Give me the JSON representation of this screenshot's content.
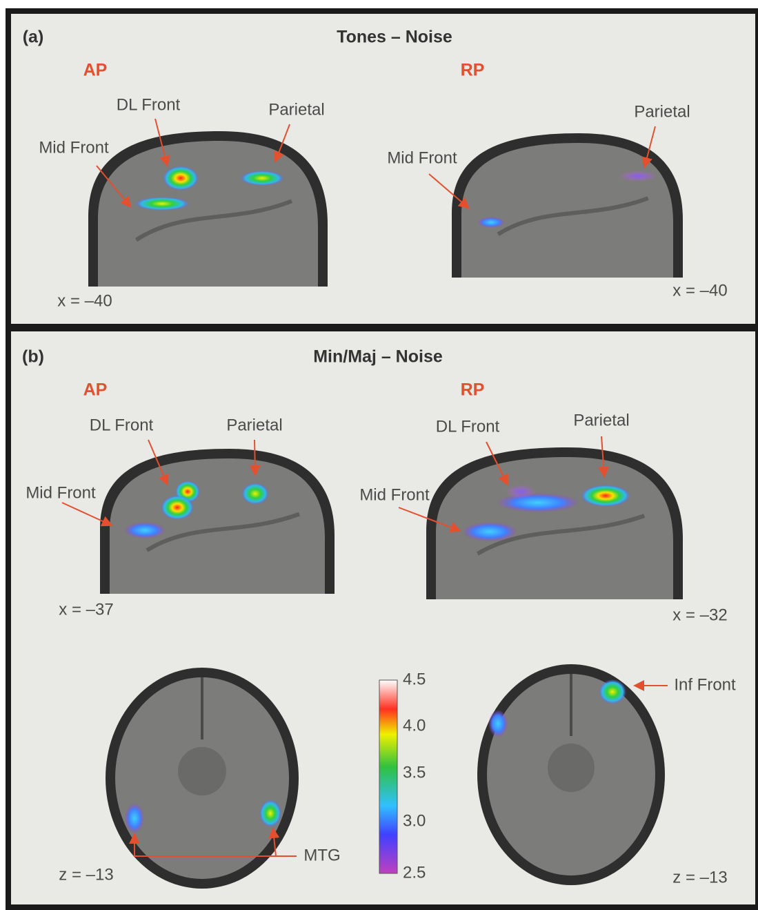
{
  "panels": [
    {
      "label": "(a)",
      "title": "Tones – Noise",
      "images": [
        {
          "group": "AP",
          "annotations": [
            "DL Front",
            "Parietal",
            "Mid Front"
          ],
          "coord": "x = –40"
        },
        {
          "group": "RP",
          "annotations": [
            "Parietal",
            "Mid Front"
          ],
          "coord": "x = –40"
        }
      ]
    },
    {
      "label": "(b)",
      "title": "Min/Maj – Noise",
      "images": [
        {
          "group": "AP",
          "annotations": [
            "DL Front",
            "Parietal",
            "Mid Front"
          ],
          "coord": "x = –37"
        },
        {
          "group": "RP",
          "annotations": [
            "DL Front",
            "Parietal",
            "Mid Front"
          ],
          "coord": "x = –32"
        },
        {
          "annotations": [
            "MTG"
          ],
          "coord": "z = –13"
        },
        {
          "annotations": [
            "Inf Front"
          ],
          "coord": "z = –13"
        }
      ]
    }
  ],
  "colorbar": {
    "ticks": [
      "4.5",
      "4.0",
      "3.5",
      "3.0",
      "2.5"
    ]
  }
}
